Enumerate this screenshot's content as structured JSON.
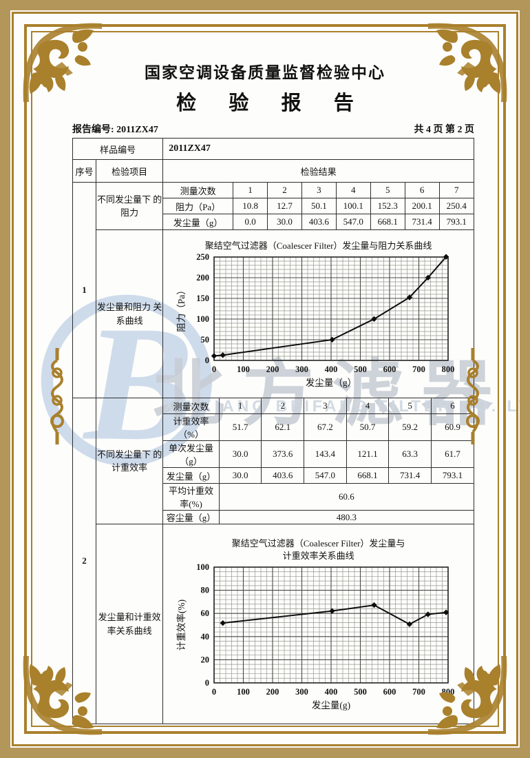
{
  "header": {
    "org_title": "国家空调设备质量监督检验中心",
    "report_title": "检 验 报 告",
    "report_no": "报告编号: 2011ZX47",
    "page_info": "共 4 页 第 2 页"
  },
  "table": {
    "sample_label": "样品编号",
    "sample_value": "2011ZX47",
    "col_seq": "序号",
    "col_item": "检验项目",
    "col_result": "检验结果"
  },
  "sections": {
    "s1": {
      "seq": "1",
      "item_top": "不同发尘量下 的阻力",
      "item_bottom": "发尘量和阻力 关系曲线",
      "measure_label": "测量次数",
      "measure_cols": [
        "1",
        "2",
        "3",
        "4",
        "5",
        "6",
        "7"
      ],
      "rows": [
        {
          "label": "阻力（Pa）",
          "values": [
            "10.8",
            "12.7",
            "50.1",
            "100.1",
            "152.3",
            "200.1",
            "250.4"
          ]
        },
        {
          "label": "发尘量（g）",
          "values": [
            "0.0",
            "30.0",
            "403.6",
            "547.0",
            "668.1",
            "731.4",
            "793.1"
          ]
        }
      ]
    },
    "s2": {
      "seq": "2",
      "item_top": "不同发尘量下 的计重效率",
      "item_bottom": "发尘量和计重效 率关系曲线",
      "measure_label": "测量次数",
      "measure_cols": [
        "1",
        "2",
        "3",
        "4",
        "5",
        "6"
      ],
      "rows": [
        {
          "label": "计重效率（%）",
          "values": [
            "51.7",
            "62.1",
            "67.2",
            "50.7",
            "59.2",
            "60.9"
          ]
        },
        {
          "label": "单次发尘量（g）",
          "values": [
            "30.0",
            "373.6",
            "143.4",
            "121.1",
            "63.3",
            "61.7"
          ]
        },
        {
          "label": "发尘量（g）",
          "values": [
            "30.0",
            "403.6",
            "547.0",
            "668.1",
            "731.4",
            "793.1"
          ]
        }
      ],
      "summary": [
        {
          "label": "平均计重效率(%)",
          "value": "60.6"
        },
        {
          "label": "容尘量（g）",
          "value": "480.3"
        }
      ]
    }
  },
  "chart_data": [
    {
      "type": "line",
      "title": "聚结空气过滤器（Coalescer Filter）发尘量与阻力关系曲线",
      "xlabel": "发尘量（g）",
      "ylabel": "阻力（Pa）",
      "x": [
        0,
        30.0,
        403.6,
        547.0,
        668.1,
        731.4,
        793.1
      ],
      "y": [
        10.8,
        12.7,
        50.1,
        100.1,
        152.3,
        200.1,
        250.4
      ],
      "xlim": [
        0,
        800
      ],
      "ylim": [
        0,
        250
      ],
      "xtick_step": 100,
      "ytick_step": 50,
      "minor_x": 20,
      "minor_y": 10,
      "grid": true,
      "marker": "diamond",
      "legend": "none"
    },
    {
      "type": "line",
      "title": "聚结空气过滤器（Coalescer Filter）发尘量与",
      "title2": "计重效率关系曲线",
      "xlabel": "发尘量(g)",
      "ylabel": "计重效率(%)",
      "x": [
        30.0,
        403.6,
        547.0,
        668.1,
        731.4,
        793.1
      ],
      "y": [
        51.7,
        62.1,
        67.2,
        50.7,
        59.2,
        60.9
      ],
      "xlim": [
        0,
        800
      ],
      "ylim": [
        0,
        100
      ],
      "xtick_step": 100,
      "ytick_step": 20,
      "minor_x": 20,
      "minor_y": 4,
      "grid": true,
      "marker": "diamond",
      "legend": "none"
    }
  ],
  "watermark": {
    "logo_letter": "B",
    "cn_text": "北方滤器",
    "en_text": "XINXIANG BEIFANG FILTER CO. LTD"
  },
  "colors": {
    "frame_gold": "#a9802c",
    "frame_tan": "#b39659",
    "line_dark": "#2d2d2d",
    "watermark_blue": "#c3d3e8",
    "watermark_gray": "#c6ccd5"
  }
}
